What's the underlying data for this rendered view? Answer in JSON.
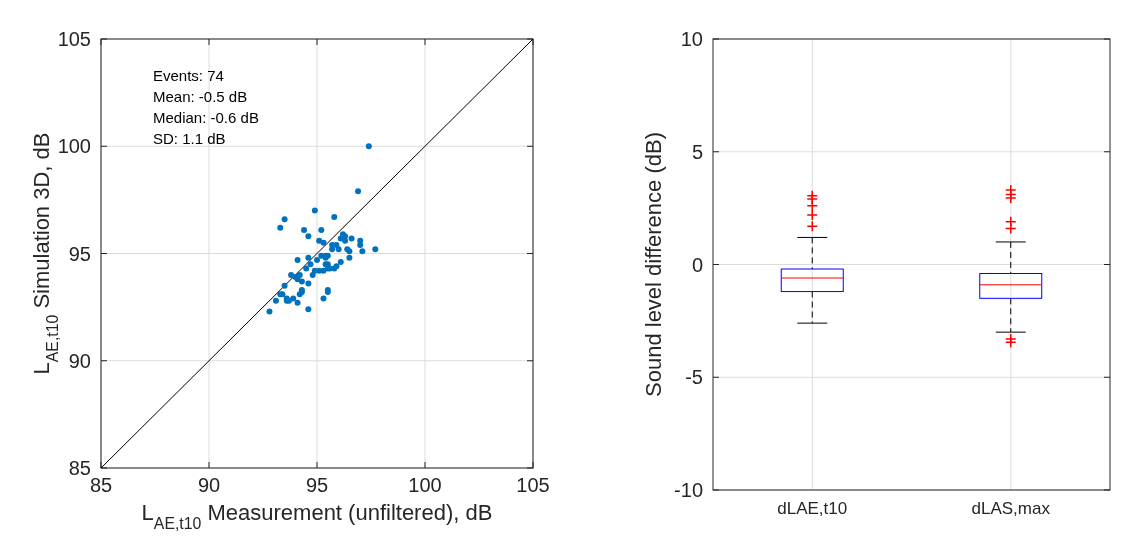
{
  "chart_data": [
    {
      "type": "scatter",
      "xlabel": "L$_{AE,t10}$ Measurement (unfiltered), dB",
      "ylabel": "L$_{AE,t10}$ Simulation 3D, dB",
      "xlim": [
        85,
        105
      ],
      "ylim": [
        85,
        105
      ],
      "xticks": [
        85,
        90,
        95,
        100,
        105
      ],
      "yticks": [
        85,
        90,
        95,
        100,
        105
      ],
      "grid": true,
      "annotations": [
        "Events: 74",
        "Mean: -0.5 dB",
        "Median: -0.6 dB",
        "SD: 1.1 dB"
      ],
      "series": [
        {
          "type": "scatter",
          "color": "#0072bd",
          "marker": "circle",
          "x": [
            97.4,
            96.9,
            94.9,
            95.8,
            93.5,
            93.3,
            94.4,
            95.2,
            94.6,
            95.1,
            95.3,
            96.2,
            96.3,
            96.1,
            96.3,
            96.6,
            97.0,
            97.0,
            97.7,
            97.1,
            95.7,
            95.9,
            95.7,
            96.0,
            96.4,
            96.5,
            96.5,
            95.2,
            95.4,
            95.5,
            95.4,
            94.6,
            94.1,
            95.0,
            95.4,
            95.5,
            96.1,
            94.7,
            94.5,
            95.6,
            95.9,
            95.8,
            94.9,
            95.1,
            95.3,
            95.5,
            94.2,
            93.8,
            94.0,
            94.1,
            94.8,
            94.3,
            93.5,
            94.6,
            94.3,
            93.4,
            93.3,
            94.3,
            94.2,
            95.5,
            95.5,
            93.6,
            93.9,
            93.6,
            93.7,
            93.1,
            94.1,
            95.3,
            94.6,
            92.8
          ],
          "values": [
            100.0,
            97.9,
            97.0,
            96.7,
            96.6,
            96.2,
            96.1,
            96.1,
            95.8,
            95.6,
            95.5,
            95.9,
            95.8,
            95.7,
            95.6,
            95.7,
            95.6,
            95.4,
            95.2,
            95.1,
            95.4,
            95.4,
            95.2,
            95.2,
            95.2,
            95.1,
            94.8,
            94.9,
            94.9,
            94.9,
            94.8,
            94.8,
            94.7,
            94.7,
            94.5,
            94.5,
            94.6,
            94.5,
            94.3,
            94.3,
            94.4,
            94.3,
            94.2,
            94.2,
            94.2,
            94.3,
            94.0,
            94.0,
            93.9,
            93.8,
            94.0,
            93.7,
            93.5,
            93.6,
            93.3,
            93.1,
            93.1,
            93.2,
            93.1,
            93.3,
            93.2,
            92.9,
            92.9,
            92.8,
            92.8,
            92.8,
            92.7,
            92.9,
            92.4,
            92.3
          ]
        },
        {
          "type": "line",
          "color": "#000000",
          "marker": "none",
          "x": [
            85,
            105
          ],
          "values": [
            85,
            105
          ]
        }
      ]
    },
    {
      "type": "box",
      "ylabel": "Sound level difference (dB)",
      "categories": [
        "dLAE,t10",
        "dLAS,max"
      ],
      "ylim": [
        -10,
        10
      ],
      "yticks": [
        -10,
        -5,
        0,
        5,
        10
      ],
      "grid": true,
      "series": [
        {
          "color": "#0000ff",
          "boxes": [
            {
              "low": -2.6,
              "q1": -1.2,
              "median": -0.6,
              "q3": -0.2,
              "high": 1.2,
              "outliers": [
                1.7,
                2.2,
                2.6,
                2.9,
                3.05
              ]
            },
            {
              "low": -3.0,
              "q1": -1.5,
              "median": -0.9,
              "q3": -0.4,
              "high": 1.0,
              "outliers": [
                1.6,
                1.9,
                2.95,
                3.1,
                3.3,
                -3.3,
                -3.45
              ]
            }
          ]
        }
      ]
    }
  ]
}
